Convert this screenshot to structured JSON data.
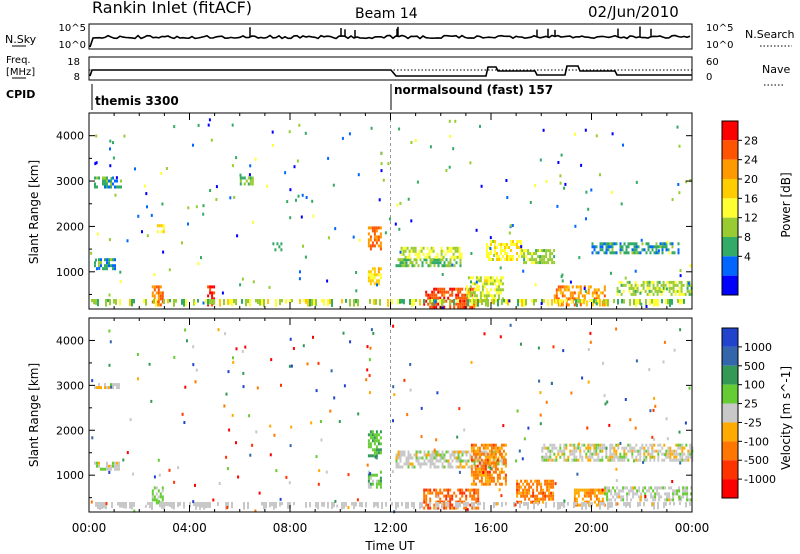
{
  "header": {
    "station_title": "Rankin Inlet (fitACF)",
    "beam_label": "Beam 14",
    "date_label": "02/Jun/2010"
  },
  "noise_panel": {
    "left_label": "N.Sky",
    "left_ticks": [
      "10^5",
      "10^0"
    ],
    "right_label": "N.Search",
    "right_ticks": [
      "10^5",
      "10^0"
    ]
  },
  "freq_panel": {
    "left_label_line1": "Freq.",
    "left_label_line2": "[MHz]",
    "left_ticks": [
      "18",
      "8"
    ],
    "right_label": "Nave",
    "right_ticks": [
      "60",
      "0"
    ]
  },
  "cpid_panel": {
    "label": "CPID",
    "modes": [
      {
        "name": "themis 3300",
        "start_hour": 0
      },
      {
        "name": "normalsound (fast) 157",
        "start_hour": 12
      }
    ]
  },
  "x_axis": {
    "title": "Time UT",
    "ticks": [
      "00:00",
      "04:00",
      "08:00",
      "12:00",
      "16:00",
      "20:00",
      "00:00"
    ]
  },
  "y_axis": {
    "title": "Slant Range [km]",
    "ticks": [
      "1000",
      "2000",
      "3000",
      "4000"
    ]
  },
  "colorbars": {
    "power": {
      "title": "Power [dB]",
      "labels": [
        "28",
        "24",
        "20",
        "16",
        "12",
        "8",
        "4"
      ],
      "colors": [
        "#ff0000",
        "#ff5500",
        "#ff9900",
        "#ffcc00",
        "#ffff33",
        "#99cc33",
        "#33aa66",
        "#0066ff",
        "#0000ff"
      ]
    },
    "velocity": {
      "title": "Velocity [m s^-1]",
      "labels": [
        "1000",
        "500",
        "100",
        "25",
        "-25",
        "-100",
        "-500",
        "-1000"
      ],
      "colors": [
        "#2244cc",
        "#3366aa",
        "#339955",
        "#66cc33",
        "#c8c8c8",
        "#ffaa00",
        "#ff7700",
        "#ff3300",
        "#ff0000"
      ]
    }
  },
  "chart_data": [
    {
      "type": "heatmap",
      "title": "Power [dB]",
      "xlabel": "Time UT",
      "ylabel": "Slant Range [km]",
      "xlim": [
        0,
        24
      ],
      "ylim": [
        180,
        4500
      ],
      "x_unit": "hours UT",
      "color_scale": [
        0,
        30
      ],
      "regions": [
        {
          "t0": 0.2,
          "t1": 1.0,
          "r0": 1100,
          "r1": 1300,
          "value": 8
        },
        {
          "t0": 0.2,
          "t1": 1.3,
          "r0": 2900,
          "r1": 3100,
          "value": 8
        },
        {
          "t0": 2.5,
          "t1": 2.9,
          "r0": 300,
          "r1": 700,
          "value": 24
        },
        {
          "t0": 2.7,
          "t1": 3.0,
          "r0": 1900,
          "r1": 2050,
          "value": 16
        },
        {
          "t0": 4.7,
          "t1": 5.0,
          "r0": 300,
          "r1": 700,
          "value": 26
        },
        {
          "t0": 6.0,
          "t1": 6.5,
          "r0": 2950,
          "r1": 3100,
          "value": 10
        },
        {
          "t0": 7.3,
          "t1": 7.7,
          "r0": 1500,
          "r1": 1650,
          "value": 8
        },
        {
          "t0": 11.1,
          "t1": 11.6,
          "r0": 1500,
          "r1": 2000,
          "value": 24
        },
        {
          "t0": 11.1,
          "t1": 11.6,
          "r0": 750,
          "r1": 1100,
          "value": 18
        },
        {
          "t0": 12.2,
          "t1": 14.8,
          "r0": 1150,
          "r1": 1300,
          "value": 10
        },
        {
          "t0": 12.4,
          "t1": 14.8,
          "r0": 1350,
          "r1": 1550,
          "value": 14
        },
        {
          "t0": 13.3,
          "t1": 15.3,
          "r0": 250,
          "r1": 650,
          "value": 26
        },
        {
          "t0": 15.0,
          "t1": 16.5,
          "r0": 400,
          "r1": 900,
          "value": 14
        },
        {
          "t0": 15.8,
          "t1": 17.2,
          "r0": 1300,
          "r1": 1700,
          "value": 16
        },
        {
          "t0": 17.2,
          "t1": 18.5,
          "r0": 1200,
          "r1": 1500,
          "value": 12
        },
        {
          "t0": 18.5,
          "t1": 20.5,
          "r0": 250,
          "r1": 700,
          "value": 22
        },
        {
          "t0": 20.0,
          "t1": 23.5,
          "r0": 1400,
          "r1": 1650,
          "value": 8
        },
        {
          "t0": 21.0,
          "t1": 24.0,
          "r0": 500,
          "r1": 800,
          "value": 12
        }
      ]
    },
    {
      "type": "heatmap",
      "title": "Velocity [m s^-1]",
      "xlabel": "Time UT",
      "ylabel": "Slant Range [km]",
      "xlim": [
        0,
        24
      ],
      "ylim": [
        180,
        4500
      ],
      "x_unit": "hours UT",
      "color_scale": [
        -1000,
        1000
      ],
      "regions": [
        {
          "t0": 0.2,
          "t1": 1.2,
          "r0": 1150,
          "r1": 1300,
          "value": 0
        },
        {
          "t0": 0.2,
          "t1": 1.3,
          "r0": 2950,
          "r1": 3050,
          "value": 0
        },
        {
          "t0": 2.5,
          "t1": 2.9,
          "r0": 350,
          "r1": 750,
          "value": 150
        },
        {
          "t0": 11.1,
          "t1": 11.6,
          "r0": 1400,
          "r1": 2000,
          "value": 300
        },
        {
          "t0": 11.1,
          "t1": 11.6,
          "r0": 750,
          "r1": 1100,
          "value": 200
        },
        {
          "t0": 12.2,
          "t1": 16.5,
          "r0": 1150,
          "r1": 1550,
          "value": 0
        },
        {
          "t0": 13.3,
          "t1": 15.5,
          "r0": 250,
          "r1": 700,
          "value": -500
        },
        {
          "t0": 15.2,
          "t1": 16.6,
          "r0": 800,
          "r1": 1700,
          "value": -400
        },
        {
          "t0": 17.0,
          "t1": 18.5,
          "r0": 400,
          "r1": 900,
          "value": -400
        },
        {
          "t0": 19.3,
          "t1": 20.5,
          "r0": 300,
          "r1": 700,
          "value": -300
        },
        {
          "t0": 18.0,
          "t1": 24.0,
          "r0": 1300,
          "r1": 1700,
          "value": 0
        },
        {
          "t0": 20.5,
          "t1": 24.0,
          "r0": 450,
          "r1": 750,
          "value": 50
        }
      ]
    }
  ]
}
